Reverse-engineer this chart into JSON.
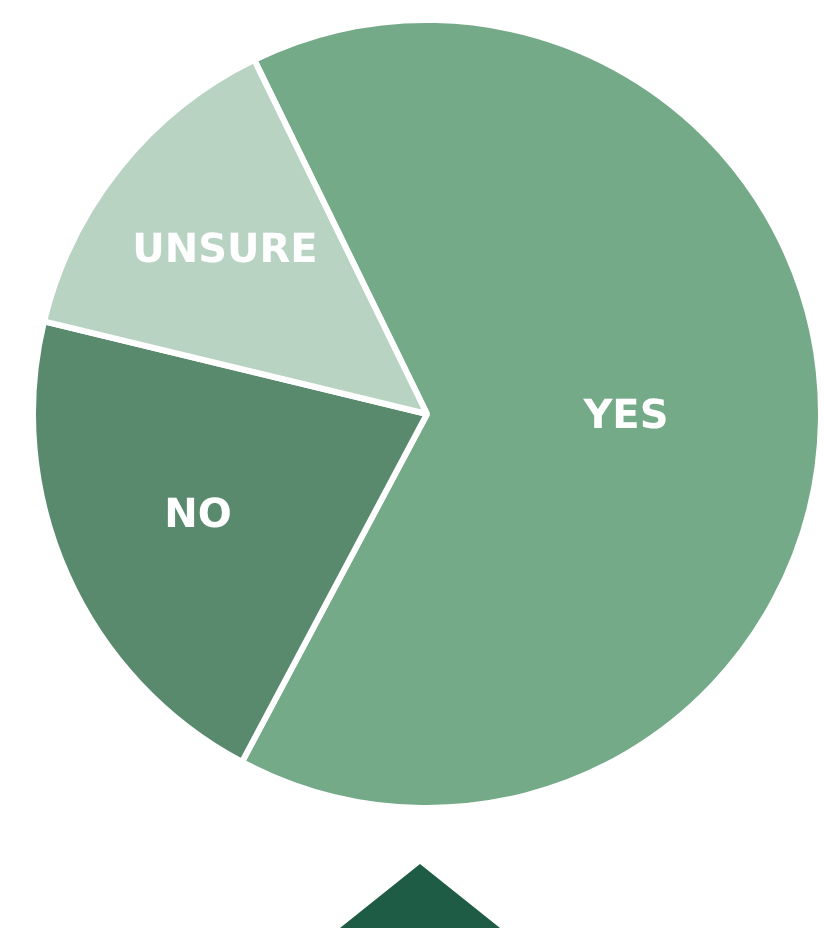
{
  "chart_data": {
    "type": "pie",
    "categories": [
      "YES",
      "NO",
      "UNSURE"
    ],
    "values": [
      65,
      21,
      14
    ],
    "colors": [
      "#74aa88",
      "#5a8a6e",
      "#b9d3c3"
    ],
    "legend": false
  }
}
